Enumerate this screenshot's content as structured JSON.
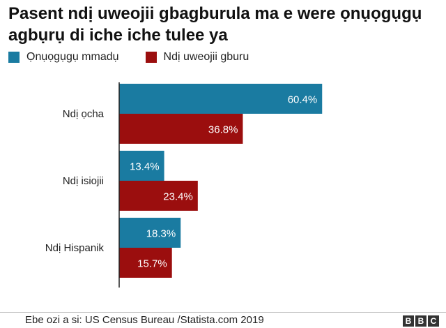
{
  "title": "Pasent ndị uweojii gbagburula ma e were ọnụọgụgụ agbụrụ di iche iche tulee ya",
  "source": "Ebe ozi a si: US Census Bureau /Statista.com 2019",
  "logo": {
    "letters": [
      "B",
      "B",
      "C"
    ]
  },
  "chart_data": {
    "type": "bar",
    "orientation": "horizontal",
    "categories": [
      "Ndị ọcha",
      "Ndị isiojii",
      "Ndị Hispanik"
    ],
    "series": [
      {
        "name": "Ọnụọgụgụ mmadụ",
        "color": "#1a7ba1",
        "values": [
          60.4,
          13.4,
          18.3
        ],
        "labels": [
          "60.4%",
          "13.4%",
          "18.3%"
        ]
      },
      {
        "name": "Ndị uweojii gburu",
        "color": "#9b0e0e",
        "values": [
          36.8,
          23.4,
          15.7
        ],
        "labels": [
          "36.8%",
          "23.4%",
          "15.7%"
        ]
      }
    ],
    "xlim": [
      0,
      73
    ],
    "grid": false,
    "legend": "top-left"
  }
}
